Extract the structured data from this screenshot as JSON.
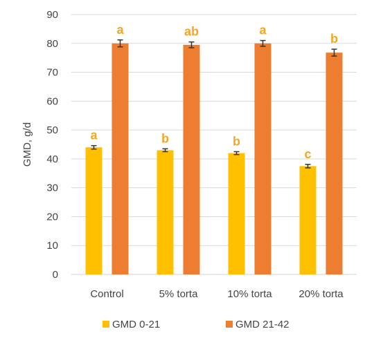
{
  "chart_data": {
    "type": "bar",
    "categories": [
      "Control",
      "5% torta",
      "10% torta",
      "20% torta"
    ],
    "ylabel": "GMD, g/d",
    "xlabel": "",
    "ylim": [
      0,
      90
    ],
    "yticks": [
      0,
      10,
      20,
      30,
      40,
      50,
      60,
      70,
      80,
      90
    ],
    "grid": true,
    "legend_position": "bottom",
    "series": [
      {
        "name": "GMD 0-21",
        "color": "#ffc000",
        "values": [
          44.0,
          43.0,
          42.0,
          37.5
        ],
        "errors": [
          0.6,
          0.5,
          0.5,
          0.6
        ],
        "letters": [
          "a",
          "b",
          "b",
          "c"
        ]
      },
      {
        "name": "GMD 21-42",
        "color": "#ed7d31",
        "values": [
          80.0,
          79.5,
          80.0,
          76.8
        ],
        "errors": [
          1.2,
          1.0,
          1.0,
          1.2
        ],
        "letters": [
          "a",
          "ab",
          "a",
          "b"
        ]
      }
    ],
    "letter_color": "#f5a623"
  }
}
